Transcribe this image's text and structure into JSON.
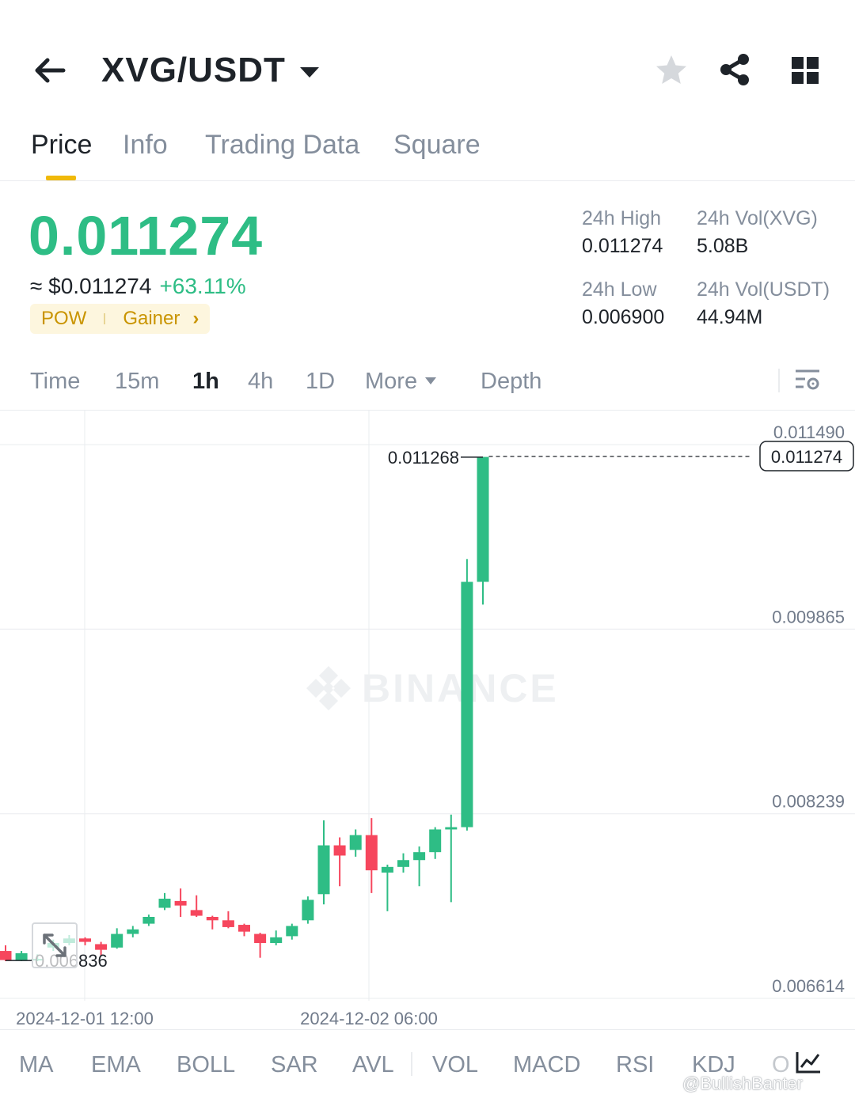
{
  "header": {
    "pair": "XVG/USDT",
    "icons": [
      "back-arrow-icon",
      "dropdown-caret-icon",
      "star-icon",
      "share-icon",
      "grid-icon"
    ]
  },
  "tabs": [
    {
      "label": "Price",
      "active": true
    },
    {
      "label": "Info"
    },
    {
      "label": "Trading Data"
    },
    {
      "label": "Square"
    }
  ],
  "ticker": {
    "price": "0.011274",
    "fiat": "≈ $0.011274",
    "change": "+63.11%",
    "tag1": "POW",
    "tag2": "Gainer",
    "high_label": "24h High",
    "high_value": "0.011274",
    "low_label": "24h Low",
    "low_value": "0.006900",
    "vol_base_label": "24h Vol(XVG)",
    "vol_base_value": "5.08B",
    "vol_quote_label": "24h Vol(USDT)",
    "vol_quote_value": "44.94M",
    "up_color": "#2ebd85",
    "down_color": "#f6465d"
  },
  "intervals": {
    "time": "Time",
    "m15": "15m",
    "h1": "1h",
    "h4": "4h",
    "d1": "1D",
    "more": "More",
    "depth": "Depth",
    "selected": "1h"
  },
  "chart_data": {
    "type": "candlestick",
    "watermark": "BINANCE",
    "y_ticks": [
      "0.011490",
      "0.009865",
      "0.008239",
      "0.006614"
    ],
    "x_labels": [
      "2024-12-01 12:00",
      "2024-12-02 06:00"
    ],
    "ylim": [
      0.006614,
      0.01149
    ],
    "max_marker": "0.011268",
    "min_marker": "0.006836",
    "last_price": "0.011274",
    "candles": [
      {
        "o": 0.00692,
        "h": 0.00697,
        "l": 0.00683,
        "c": 0.00684
      },
      {
        "o": 0.00684,
        "h": 0.00692,
        "l": 0.00683,
        "c": 0.0069
      },
      {
        "o": 0.00684,
        "h": 0.00689,
        "l": 0.00683,
        "c": 0.00685
      },
      {
        "o": 0.00695,
        "h": 0.00702,
        "l": 0.00692,
        "c": 0.00699
      },
      {
        "o": 0.00699,
        "h": 0.00706,
        "l": 0.00697,
        "c": 0.00703
      },
      {
        "o": 0.00703,
        "h": 0.00704,
        "l": 0.00697,
        "c": 0.007
      },
      {
        "o": 0.00698,
        "h": 0.007,
        "l": 0.00688,
        "c": 0.00693
      },
      {
        "o": 0.00695,
        "h": 0.00712,
        "l": 0.00694,
        "c": 0.00707
      },
      {
        "o": 0.00707,
        "h": 0.00714,
        "l": 0.00704,
        "c": 0.00711
      },
      {
        "o": 0.00716,
        "h": 0.00724,
        "l": 0.00714,
        "c": 0.00722
      },
      {
        "o": 0.0073,
        "h": 0.00743,
        "l": 0.00728,
        "c": 0.00738
      },
      {
        "o": 0.00736,
        "h": 0.00747,
        "l": 0.00722,
        "c": 0.00732
      },
      {
        "o": 0.00728,
        "h": 0.00741,
        "l": 0.00722,
        "c": 0.00723
      },
      {
        "o": 0.00722,
        "h": 0.00723,
        "l": 0.00711,
        "c": 0.00719
      },
      {
        "o": 0.00719,
        "h": 0.00727,
        "l": 0.00712,
        "c": 0.00713
      },
      {
        "o": 0.00715,
        "h": 0.00716,
        "l": 0.00705,
        "c": 0.00709
      },
      {
        "o": 0.00707,
        "h": 0.00708,
        "l": 0.00686,
        "c": 0.00699
      },
      {
        "o": 0.00699,
        "h": 0.0071,
        "l": 0.00697,
        "c": 0.00704
      },
      {
        "o": 0.00705,
        "h": 0.00716,
        "l": 0.00702,
        "c": 0.00714
      },
      {
        "o": 0.00719,
        "h": 0.0074,
        "l": 0.00716,
        "c": 0.00737
      },
      {
        "o": 0.00742,
        "h": 0.00807,
        "l": 0.00733,
        "c": 0.00785
      },
      {
        "o": 0.00785,
        "h": 0.00792,
        "l": 0.00749,
        "c": 0.00776
      },
      {
        "o": 0.00781,
        "h": 0.00799,
        "l": 0.00775,
        "c": 0.00794
      },
      {
        "o": 0.00794,
        "h": 0.00809,
        "l": 0.00743,
        "c": 0.00763
      },
      {
        "o": 0.00761,
        "h": 0.00768,
        "l": 0.00727,
        "c": 0.00766
      },
      {
        "o": 0.00766,
        "h": 0.00778,
        "l": 0.00761,
        "c": 0.00772
      },
      {
        "o": 0.00772,
        "h": 0.00784,
        "l": 0.00749,
        "c": 0.00779
      },
      {
        "o": 0.00779,
        "h": 0.00801,
        "l": 0.00773,
        "c": 0.00799
      },
      {
        "o": 0.00799,
        "h": 0.00812,
        "l": 0.00735,
        "c": 0.00801
      },
      {
        "o": 0.00801,
        "h": 0.01037,
        "l": 0.00798,
        "c": 0.01017
      },
      {
        "o": 0.01017,
        "h": 0.01127,
        "l": 0.00997,
        "c": 0.01127
      }
    ]
  },
  "indicators": {
    "ma": "MA",
    "ema": "EMA",
    "boll": "BOLL",
    "sar": "SAR",
    "avl": "AVL",
    "vol": "VOL",
    "macd": "MACD",
    "rsi": "RSI",
    "kdj": "KDJ",
    "more": "O"
  },
  "footer": {
    "watermark": "@BullishBanter"
  }
}
